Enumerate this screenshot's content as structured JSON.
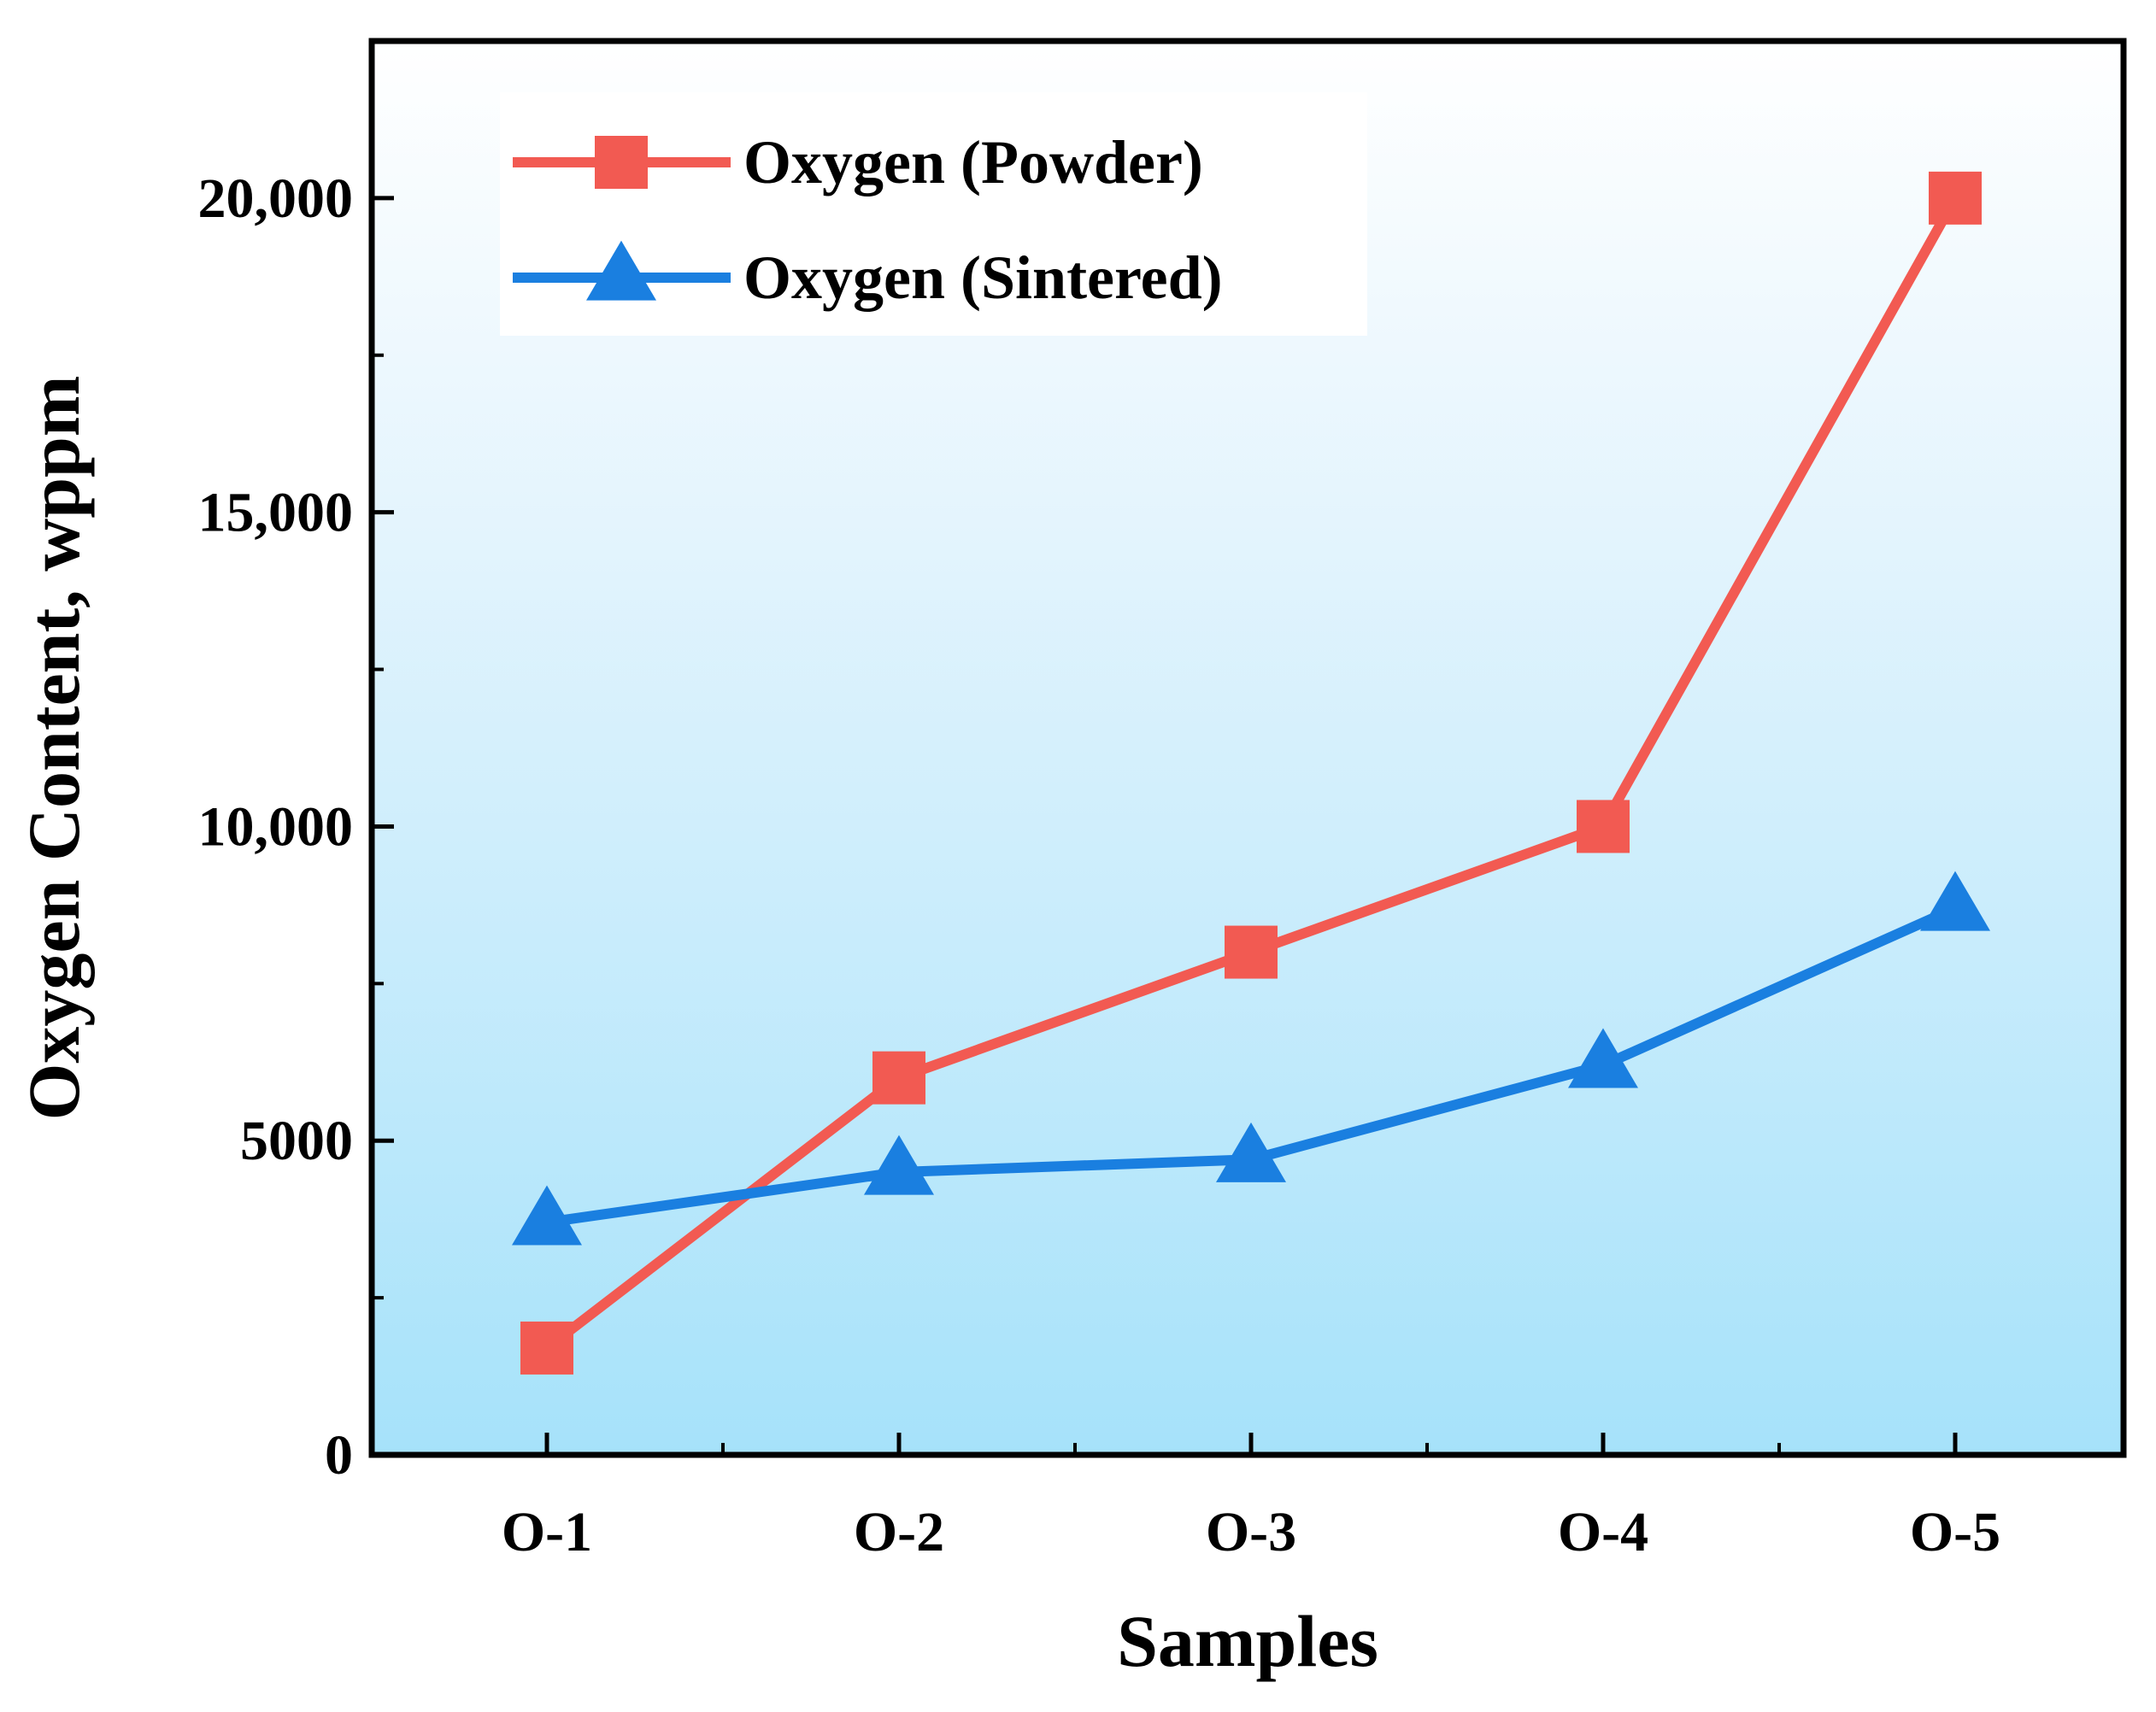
{
  "chart_data": {
    "type": "line",
    "title": "",
    "xlabel": "Samples",
    "ylabel": "Oxygen Content, wppm",
    "categories": [
      "O-1",
      "O-2",
      "O-3",
      "O-4",
      "O-5"
    ],
    "ylim": [
      0,
      22500
    ],
    "yticks": [
      0,
      5000,
      10000,
      15000,
      20000
    ],
    "ytick_labels": [
      "0",
      "5000",
      "10,000",
      "15,000",
      "20,000"
    ],
    "grid": false,
    "legend_position": "top-left",
    "series": [
      {
        "name": "Oxygen (Powder)",
        "marker": "square",
        "color": "#f25a52",
        "values": [
          1700,
          6000,
          8000,
          10000,
          20000
        ]
      },
      {
        "name": "Oxygen (Sintered)",
        "marker": "triangle",
        "color": "#1a7fe0",
        "values": [
          3700,
          4500,
          4700,
          6200,
          8700
        ]
      }
    ]
  }
}
